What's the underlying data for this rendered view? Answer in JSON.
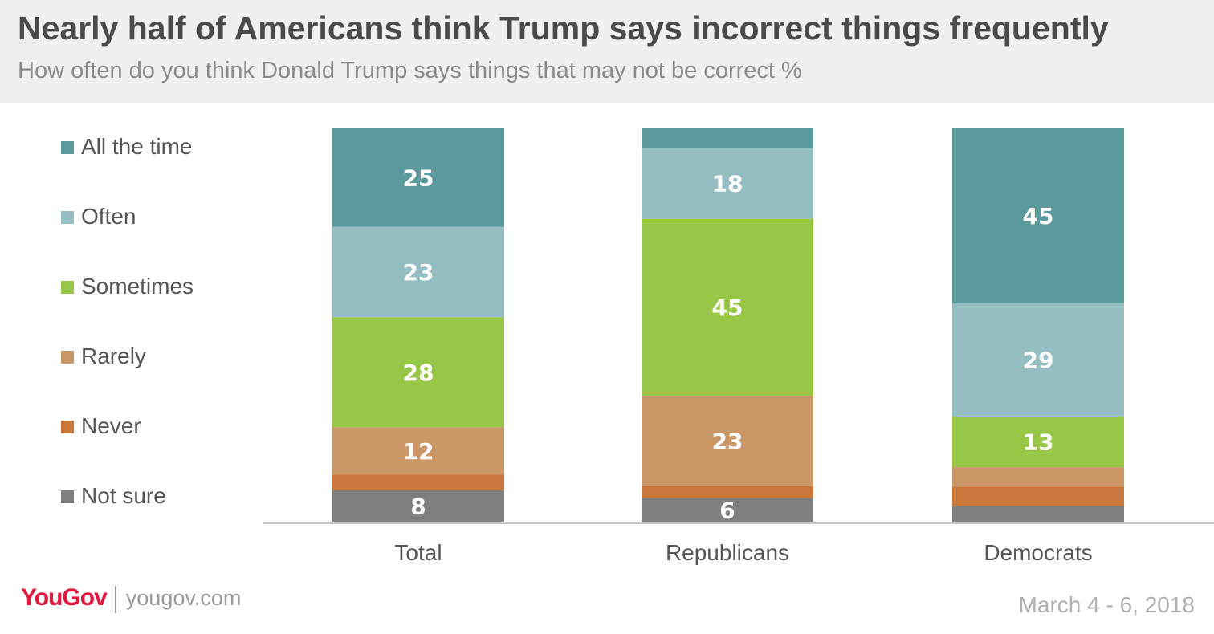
{
  "header": {
    "title": "Nearly half of Americans think Trump says incorrect things frequently",
    "subtitle": "How often do you think Donald Trump says things that may not be correct %"
  },
  "footer": {
    "brand": "YouGov",
    "site": "yougov.com",
    "date": "March 4 - 6, 2018"
  },
  "chart_data": {
    "type": "bar",
    "stacked": true,
    "categories": [
      "Total",
      "Republicans",
      "Democrats"
    ],
    "series": [
      {
        "name": "All the time",
        "color": "#5a9a9c",
        "values": [
          25,
          5,
          45
        ],
        "labels": [
          "25",
          "",
          "45"
        ]
      },
      {
        "name": "Often",
        "color": "#94bec1",
        "values": [
          23,
          18,
          29
        ],
        "labels": [
          "23",
          "18",
          "29"
        ]
      },
      {
        "name": "Sometimes",
        "color": "#98c646",
        "values": [
          28,
          45,
          13
        ],
        "labels": [
          "28",
          "45",
          "13"
        ]
      },
      {
        "name": "Rarely",
        "color": "#cc9767",
        "values": [
          12,
          23,
          5
        ],
        "labels": [
          "12",
          "23",
          ""
        ]
      },
      {
        "name": "Never",
        "color": "#c9773a",
        "values": [
          4,
          3,
          5
        ],
        "labels": [
          "",
          "",
          ""
        ]
      },
      {
        "name": "Not sure",
        "color": "#7f7f7f",
        "values": [
          8,
          6,
          4
        ],
        "labels": [
          "8",
          "6",
          ""
        ]
      }
    ],
    "legend_position": "left",
    "grid": false
  }
}
